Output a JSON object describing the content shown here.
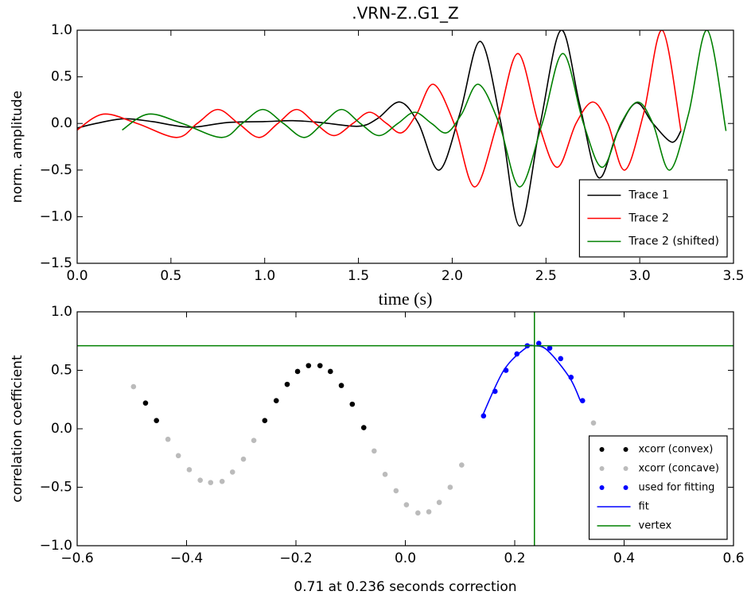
{
  "chart_data": [
    {
      "type": "line",
      "title": ".VRN-Z..G1_Z",
      "xlabel": "time (s)",
      "ylabel": "norm. amplitude",
      "xlim": [
        0,
        3.5
      ],
      "ylim": [
        -1.5,
        1.0
      ],
      "xticks": [
        {
          "value": 0,
          "label": "0.0"
        },
        {
          "value": 0.5,
          "label": "0.5"
        },
        {
          "value": 1,
          "label": "1.0"
        },
        {
          "value": 1.5,
          "label": "1.5"
        },
        {
          "value": 2,
          "label": "2.0"
        },
        {
          "value": 2.5,
          "label": "2.5"
        },
        {
          "value": 3,
          "label": "3.0"
        },
        {
          "value": 3.5,
          "label": "3.5"
        }
      ],
      "yticks": [
        {
          "value": 1,
          "label": "1.0"
        },
        {
          "value": 0.5,
          "label": "0.5"
        },
        {
          "value": 0,
          "label": "0.0"
        },
        {
          "value": -0.5,
          "label": "−0.5"
        },
        {
          "value": -1,
          "label": "−1.0"
        },
        {
          "value": -1.5,
          "label": "−1.5"
        }
      ],
      "legend": "lower right",
      "series": [
        {
          "name": "Trace 1",
          "color": "#000000",
          "mark": "line",
          "x": [
            0.0,
            0.1,
            0.25,
            0.4,
            0.6,
            0.8,
            1.0,
            1.15,
            1.3,
            1.5,
            1.6,
            1.72,
            1.82,
            1.93,
            2.04,
            2.15,
            2.26,
            2.36,
            2.47,
            2.58,
            2.68,
            2.78,
            2.88,
            2.98,
            3.07,
            3.17,
            3.22
          ],
          "values": [
            -0.05,
            0.0,
            0.05,
            0.02,
            -0.04,
            0.01,
            0.02,
            0.03,
            0.01,
            -0.03,
            0.05,
            0.23,
            0.0,
            -0.5,
            0.1,
            0.88,
            0.0,
            -1.1,
            0.0,
            1.0,
            0.2,
            -0.58,
            -0.1,
            0.22,
            0.0,
            -0.2,
            -0.08
          ]
        },
        {
          "name": "Trace 2",
          "color": "#ff0000",
          "mark": "line",
          "x": [
            0.0,
            0.14,
            0.32,
            0.53,
            0.64,
            0.75,
            0.86,
            0.97,
            1.07,
            1.17,
            1.27,
            1.37,
            1.47,
            1.56,
            1.65,
            1.73,
            1.81,
            1.9,
            2.01,
            2.12,
            2.24,
            2.35,
            2.46,
            2.56,
            2.66,
            2.75,
            2.83,
            2.92,
            3.02,
            3.12,
            3.22
          ],
          "values": [
            -0.07,
            0.1,
            0.0,
            -0.15,
            0.0,
            0.15,
            0.0,
            -0.15,
            0.0,
            0.15,
            0.0,
            -0.13,
            0.0,
            0.12,
            0.0,
            -0.1,
            0.1,
            0.42,
            0.0,
            -0.68,
            0.0,
            0.75,
            0.0,
            -0.47,
            0.0,
            0.23,
            0.0,
            -0.5,
            0.1,
            1.0,
            -0.08
          ]
        },
        {
          "name": "Trace 2 (shifted)",
          "color": "#008000",
          "mark": "line",
          "x": [
            0.24,
            0.38,
            0.56,
            0.77,
            0.88,
            0.99,
            1.1,
            1.21,
            1.31,
            1.41,
            1.51,
            1.61,
            1.71,
            1.8,
            1.89,
            1.97,
            2.05,
            2.14,
            2.25,
            2.36,
            2.48,
            2.59,
            2.7,
            2.8,
            2.9,
            2.99,
            3.07,
            3.16,
            3.26,
            3.36,
            3.46
          ],
          "values": [
            -0.07,
            0.1,
            0.0,
            -0.15,
            0.0,
            0.15,
            0.0,
            -0.15,
            0.0,
            0.15,
            0.0,
            -0.13,
            0.0,
            0.12,
            0.0,
            -0.1,
            0.1,
            0.42,
            0.0,
            -0.68,
            0.0,
            0.75,
            0.0,
            -0.47,
            0.0,
            0.23,
            0.0,
            -0.5,
            0.1,
            1.0,
            -0.08
          ]
        }
      ]
    },
    {
      "type": "scatter",
      "xlabel": "0.71 at 0.236 seconds correction",
      "ylabel": "correlation coefficient",
      "xlim": [
        -0.6,
        0.6
      ],
      "ylim": [
        -1.0,
        1.0
      ],
      "xticks": [
        {
          "value": -0.6,
          "label": "−0.6"
        },
        {
          "value": -0.4,
          "label": "−0.4"
        },
        {
          "value": -0.2,
          "label": "−0.2"
        },
        {
          "value": 0,
          "label": "0.0"
        },
        {
          "value": 0.2,
          "label": "0.2"
        },
        {
          "value": 0.4,
          "label": "0.4"
        },
        {
          "value": 0.6,
          "label": "0.6"
        }
      ],
      "yticks": [
        {
          "value": 1,
          "label": "1.0"
        },
        {
          "value": 0.5,
          "label": "0.5"
        },
        {
          "value": 0,
          "label": "0.0"
        },
        {
          "value": -0.5,
          "label": "−0.5"
        },
        {
          "value": -1,
          "label": "−1.0"
        }
      ],
      "legend": "lower right",
      "series": [
        {
          "name": "xcorr (convex)",
          "color": "#000000",
          "mark": "points",
          "x": [
            -0.475,
            -0.455,
            -0.257,
            -0.236,
            -0.216,
            -0.197,
            -0.177,
            -0.156,
            -0.137,
            -0.117,
            -0.097,
            -0.076
          ],
          "values": [
            0.22,
            0.07,
            0.07,
            0.24,
            0.38,
            0.49,
            0.54,
            0.54,
            0.49,
            0.37,
            0.21,
            0.01
          ]
        },
        {
          "name": "xcorr (concave)",
          "color": "#bbbbbb",
          "mark": "points",
          "x": [
            -0.497,
            -0.434,
            -0.415,
            -0.395,
            -0.375,
            -0.356,
            -0.335,
            -0.316,
            -0.296,
            -0.277,
            -0.057,
            -0.037,
            -0.017,
            0.002,
            0.023,
            0.043,
            0.062,
            0.082,
            0.103,
            0.344
          ],
          "values": [
            0.36,
            -0.09,
            -0.23,
            -0.35,
            -0.44,
            -0.46,
            -0.45,
            -0.37,
            -0.26,
            -0.1,
            -0.19,
            -0.39,
            -0.53,
            -0.65,
            -0.72,
            -0.71,
            -0.63,
            -0.5,
            -0.31,
            0.05
          ]
        },
        {
          "name": "used for fitting",
          "color": "#0000ff",
          "mark": "points",
          "x": [
            0.143,
            0.164,
            0.184,
            0.204,
            0.223,
            0.244,
            0.264,
            0.284,
            0.303,
            0.324
          ],
          "values": [
            0.11,
            0.32,
            0.5,
            0.64,
            0.71,
            0.73,
            0.69,
            0.6,
            0.44,
            0.24
          ]
        },
        {
          "name": "fit",
          "color": "#0000ff",
          "mark": "line",
          "x": [
            0.14,
            0.18,
            0.22,
            0.236,
            0.26,
            0.3,
            0.32
          ],
          "values": [
            0.1,
            0.5,
            0.69,
            0.71,
            0.67,
            0.44,
            0.24
          ]
        },
        {
          "name": "vertex",
          "color": "#008000",
          "mark": "crosshair",
          "x": [
            0.236
          ],
          "values": [
            0.71
          ]
        }
      ]
    }
  ]
}
